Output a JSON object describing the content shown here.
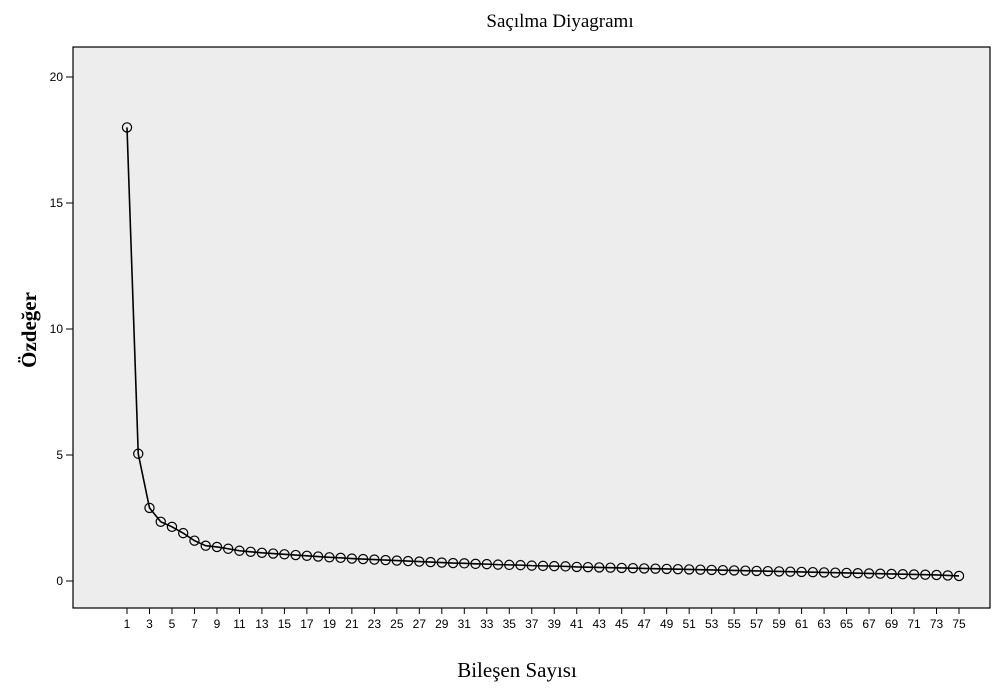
{
  "chart_data": {
    "type": "line",
    "title": "Saçılma Diyagramı",
    "xlabel": "Bileşen Sayısı",
    "ylabel": "Özdeğer",
    "ylim": [
      -1,
      21
    ],
    "yticks": [
      0,
      5,
      10,
      15,
      20
    ],
    "xlim": [
      0,
      77
    ],
    "xticks": [
      1,
      3,
      5,
      7,
      9,
      11,
      13,
      15,
      17,
      19,
      21,
      23,
      25,
      27,
      29,
      31,
      33,
      35,
      37,
      39,
      41,
      43,
      45,
      47,
      49,
      51,
      53,
      55,
      57,
      59,
      61,
      63,
      65,
      67,
      69,
      71,
      73,
      75
    ],
    "x": [
      1,
      2,
      3,
      4,
      5,
      6,
      7,
      8,
      9,
      10,
      11,
      12,
      13,
      14,
      15,
      16,
      17,
      18,
      19,
      20,
      21,
      22,
      23,
      24,
      25,
      26,
      27,
      28,
      29,
      30,
      31,
      32,
      33,
      34,
      35,
      36,
      37,
      38,
      39,
      40,
      41,
      42,
      43,
      44,
      45,
      46,
      47,
      48,
      49,
      50,
      51,
      52,
      53,
      54,
      55,
      56,
      57,
      58,
      59,
      60,
      61,
      62,
      63,
      64,
      65,
      66,
      67,
      68,
      69,
      70,
      71,
      72,
      73,
      74,
      75
    ],
    "values": [
      18.0,
      5.05,
      2.9,
      2.35,
      2.15,
      1.9,
      1.6,
      1.4,
      1.35,
      1.28,
      1.2,
      1.16,
      1.12,
      1.09,
      1.06,
      1.03,
      1.0,
      0.97,
      0.94,
      0.92,
      0.89,
      0.87,
      0.85,
      0.83,
      0.81,
      0.79,
      0.77,
      0.75,
      0.73,
      0.71,
      0.7,
      0.68,
      0.67,
      0.65,
      0.64,
      0.63,
      0.61,
      0.6,
      0.59,
      0.58,
      0.56,
      0.55,
      0.54,
      0.53,
      0.52,
      0.51,
      0.5,
      0.49,
      0.48,
      0.47,
      0.46,
      0.45,
      0.44,
      0.43,
      0.42,
      0.41,
      0.4,
      0.39,
      0.38,
      0.37,
      0.36,
      0.35,
      0.34,
      0.33,
      0.32,
      0.31,
      0.3,
      0.29,
      0.28,
      0.27,
      0.26,
      0.25,
      0.24,
      0.22,
      0.2
    ],
    "grid": false,
    "legend": "none",
    "colors": {
      "plot_background": "#ededed",
      "line": "#000000",
      "marker_stroke": "#000000",
      "marker_fill": "none"
    }
  }
}
